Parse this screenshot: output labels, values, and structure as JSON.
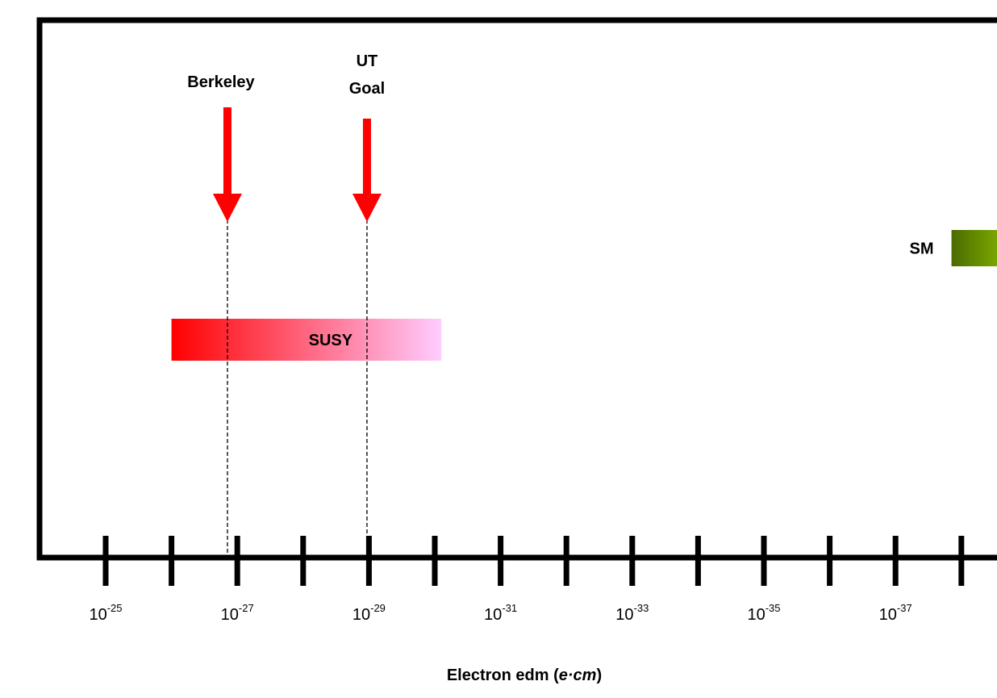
{
  "chart_data": {
    "type": "log-scale-diagram",
    "xlim": [
      -24,
      -39
    ],
    "ticks": [
      -25,
      -26,
      -27,
      -28,
      -29,
      -30,
      -31,
      -32,
      -33,
      -34,
      -35,
      -36,
      -37,
      -38
    ],
    "tick_labels": [
      {
        "value": -25,
        "base": "10",
        "exponent": "-25"
      },
      {
        "value": -27,
        "base": "10",
        "exponent": "-27"
      },
      {
        "value": -29,
        "base": "10",
        "exponent": "-29"
      },
      {
        "value": -31,
        "base": "10",
        "exponent": "-31"
      },
      {
        "value": -33,
        "base": "10",
        "exponent": "-33"
      },
      {
        "value": -35,
        "base": "10",
        "exponent": "-35"
      },
      {
        "value": -37,
        "base": "10",
        "exponent": "-37"
      }
    ],
    "axis_title": {
      "text": "Electron edm (",
      "italic": "e·cm",
      "end": ")"
    },
    "markers": [
      {
        "lines": [
          "Berkeley"
        ],
        "value": -26.85,
        "color": "#ff0000"
      },
      {
        "lines": [
          "UT",
          "Goal"
        ],
        "value": -28.97,
        "color": "#ff0000"
      }
    ],
    "bands": [
      {
        "name": "SUSY",
        "from": -26.0,
        "to": -30.1,
        "colors": [
          "#ff0000",
          "#ffccff"
        ]
      },
      {
        "name": "SM",
        "from": -37.85,
        "to": -39,
        "colors": [
          "#4a6b00",
          "#99cc00"
        ]
      }
    ]
  }
}
